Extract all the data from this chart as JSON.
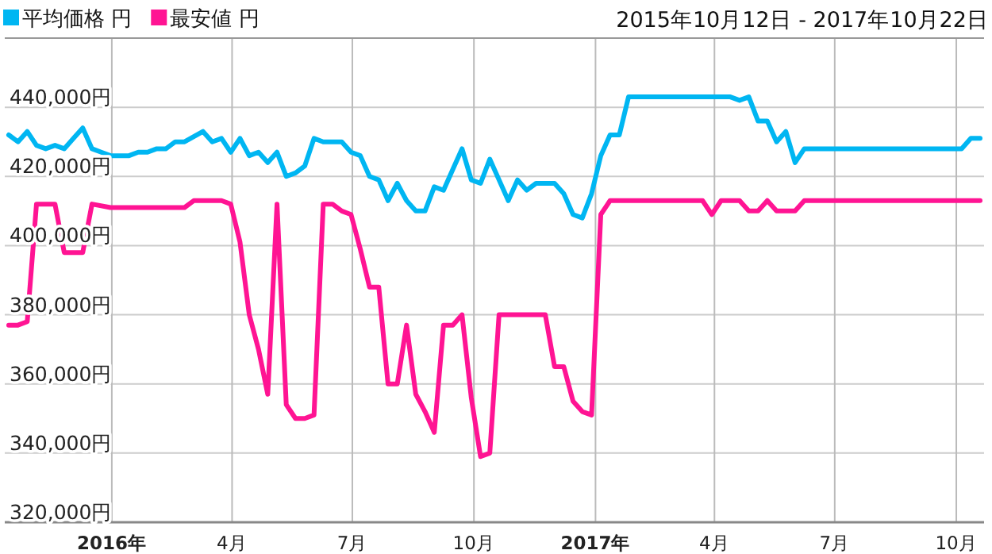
{
  "chart_data": {
    "type": "line",
    "subtitle": "2015年10月12日 - 2017年10月22日",
    "xlim": [
      "2015-10-12",
      "2017-10-22"
    ],
    "ylim": [
      320000,
      460000
    ],
    "xticks": [
      {
        "value": "2016-01-01",
        "label": "2016年"
      },
      {
        "value": "2016-04-01",
        "label": "4月"
      },
      {
        "value": "2016-07-01",
        "label": "7月"
      },
      {
        "value": "2016-10-01",
        "label": "10月"
      },
      {
        "value": "2017-01-01",
        "label": "2017年"
      },
      {
        "value": "2017-04-01",
        "label": "4月"
      },
      {
        "value": "2017-07-01",
        "label": "7月"
      },
      {
        "value": "2017-10-01",
        "label": "10月"
      }
    ],
    "yticks": [
      {
        "value": 320000,
        "label": "320,000円"
      },
      {
        "value": 340000,
        "label": "340,000円"
      },
      {
        "value": 360000,
        "label": "360,000円"
      },
      {
        "value": 380000,
        "label": "380,000円"
      },
      {
        "value": 400000,
        "label": "400,000円"
      },
      {
        "value": 420000,
        "label": "420,000円"
      },
      {
        "value": 440000,
        "label": "440,000円"
      }
    ],
    "grid": true,
    "legend": "top left",
    "series": [
      {
        "name": "平均価格 円",
        "color": "#00b6f2",
        "x": [
          "2015-10-15",
          "2015-10-22",
          "2015-10-29",
          "2015-11-05",
          "2015-11-12",
          "2015-11-19",
          "2015-11-26",
          "2015-12-03",
          "2015-12-10",
          "2015-12-17",
          "2015-12-24",
          "2015-12-31",
          "2016-01-14",
          "2016-01-21",
          "2016-01-28",
          "2016-02-04",
          "2016-02-11",
          "2016-02-18",
          "2016-02-25",
          "2016-03-10",
          "2016-03-17",
          "2016-03-24",
          "2016-03-31",
          "2016-04-07",
          "2016-04-14",
          "2016-04-21",
          "2016-04-28",
          "2016-05-05",
          "2016-05-12",
          "2016-05-19",
          "2016-05-26",
          "2016-06-02",
          "2016-06-09",
          "2016-06-23",
          "2016-06-30",
          "2016-07-07",
          "2016-07-14",
          "2016-07-21",
          "2016-07-28",
          "2016-08-04",
          "2016-08-11",
          "2016-08-18",
          "2016-08-25",
          "2016-09-01",
          "2016-09-08",
          "2016-09-15",
          "2016-09-22",
          "2016-09-29",
          "2016-10-06",
          "2016-10-13",
          "2016-10-20",
          "2016-10-27",
          "2016-11-03",
          "2016-11-10",
          "2016-11-17",
          "2016-12-01",
          "2016-12-08",
          "2016-12-15",
          "2016-12-22",
          "2016-12-29",
          "2017-01-05",
          "2017-01-12",
          "2017-01-19",
          "2017-01-26",
          "2017-04-13",
          "2017-04-20",
          "2017-04-27",
          "2017-05-04",
          "2017-05-11",
          "2017-05-18",
          "2017-05-25",
          "2017-06-01",
          "2017-06-08",
          "2017-10-05",
          "2017-10-12",
          "2017-10-19"
        ],
        "values": [
          432000,
          430000,
          433000,
          429000,
          428000,
          429000,
          428000,
          431000,
          434000,
          428000,
          427000,
          426000,
          426000,
          427000,
          427000,
          428000,
          428000,
          430000,
          430000,
          433000,
          430000,
          431000,
          427000,
          431000,
          426000,
          427000,
          424000,
          427000,
          420000,
          421000,
          423000,
          431000,
          430000,
          430000,
          427000,
          426000,
          420000,
          419000,
          413000,
          418000,
          413000,
          410000,
          410000,
          417000,
          416000,
          422000,
          428000,
          419000,
          418000,
          425000,
          419000,
          413000,
          419000,
          416000,
          418000,
          418000,
          415000,
          409000,
          408000,
          415000,
          426000,
          432000,
          432000,
          443000,
          443000,
          442000,
          443000,
          436000,
          436000,
          430000,
          433000,
          424000,
          428000,
          428000,
          431000,
          431000
        ]
      },
      {
        "name": "最安値 円",
        "color": "#ff1493",
        "x": [
          "2015-10-15",
          "2015-10-22",
          "2015-10-29",
          "2015-11-05",
          "2015-11-19",
          "2015-11-26",
          "2015-12-10",
          "2015-12-17",
          "2015-12-31",
          "2016-02-25",
          "2016-03-03",
          "2016-03-24",
          "2016-03-31",
          "2016-04-07",
          "2016-04-14",
          "2016-04-21",
          "2016-04-28",
          "2016-05-05",
          "2016-05-12",
          "2016-05-19",
          "2016-05-26",
          "2016-06-02",
          "2016-06-09",
          "2016-06-16",
          "2016-06-23",
          "2016-06-30",
          "2016-07-07",
          "2016-07-14",
          "2016-07-21",
          "2016-07-28",
          "2016-08-04",
          "2016-08-11",
          "2016-08-18",
          "2016-08-25",
          "2016-09-01",
          "2016-09-08",
          "2016-09-15",
          "2016-09-22",
          "2016-09-29",
          "2016-10-06",
          "2016-10-13",
          "2016-10-20",
          "2016-11-24",
          "2016-12-01",
          "2016-12-08",
          "2016-12-15",
          "2016-12-22",
          "2016-12-29",
          "2017-01-05",
          "2017-01-12",
          "2017-03-23",
          "2017-03-30",
          "2017-04-06",
          "2017-04-20",
          "2017-04-27",
          "2017-05-04",
          "2017-05-11",
          "2017-05-18",
          "2017-06-01",
          "2017-06-08",
          "2017-10-19"
        ],
        "values": [
          377000,
          377000,
          378000,
          412000,
          412000,
          398000,
          398000,
          412000,
          411000,
          411000,
          413000,
          413000,
          412000,
          401000,
          380000,
          370000,
          357000,
          412000,
          354000,
          350000,
          350000,
          351000,
          412000,
          412000,
          410000,
          409000,
          399000,
          388000,
          388000,
          360000,
          360000,
          377000,
          357000,
          352000,
          346000,
          377000,
          377000,
          380000,
          356000,
          339000,
          340000,
          380000,
          380000,
          365000,
          365000,
          355000,
          352000,
          351000,
          409000,
          413000,
          413000,
          409000,
          413000,
          413000,
          410000,
          410000,
          413000,
          410000,
          410000,
          413000,
          413000
        ]
      }
    ]
  }
}
